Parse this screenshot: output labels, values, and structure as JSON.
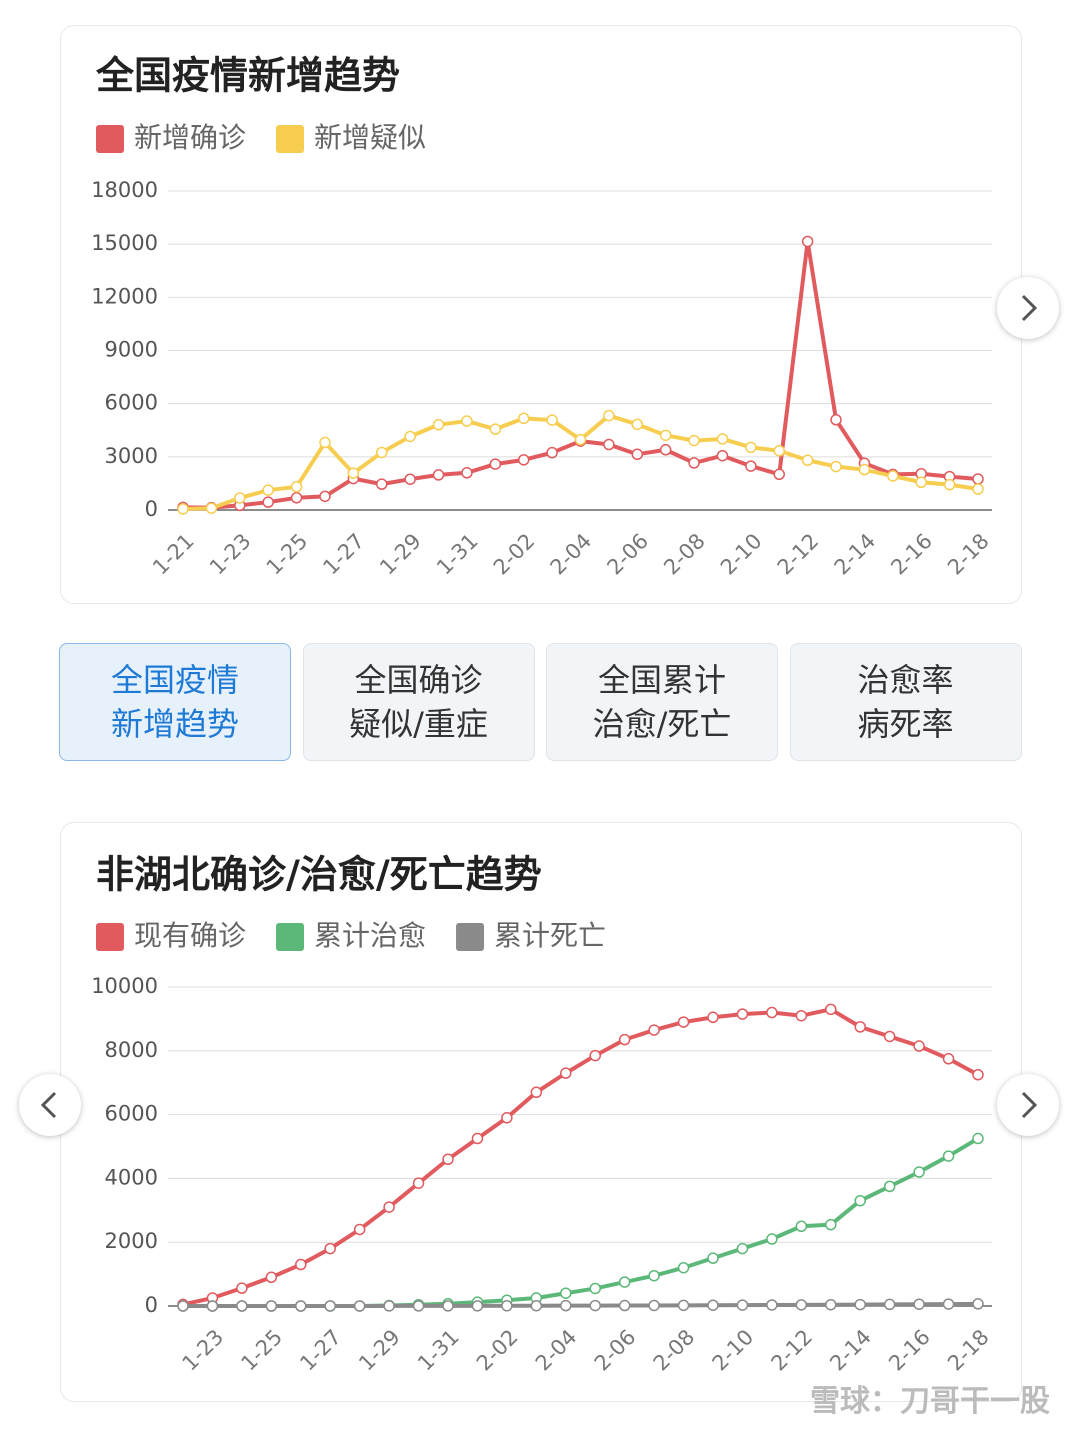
{
  "chart_data": [
    {
      "type": "line",
      "title": "全国疫情新增趋势",
      "categories": [
        "1-21",
        null,
        "1-23",
        null,
        "1-25",
        null,
        "1-27",
        null,
        "1-29",
        null,
        "1-31",
        null,
        "2-02",
        null,
        "2-04",
        null,
        "2-06",
        null,
        "2-08",
        null,
        "2-10",
        null,
        "2-12",
        null,
        "2-14",
        null,
        "2-16",
        null,
        "2-18"
      ],
      "series": [
        {
          "name": "新增确诊",
          "color": "#e05a5e",
          "values": [
            149,
            131,
            259,
            444,
            688,
            769,
            1771,
            1459,
            1737,
            1981,
            2099,
            2590,
            2829,
            3235,
            3887,
            3694,
            3143,
            3399,
            2656,
            3062,
            2478,
            2015,
            15152,
            5090,
            2641,
            2009,
            2048,
            1886,
            1749
          ]
        },
        {
          "name": "新增疑似",
          "color": "#f7cd50",
          "values": [
            60,
            100,
            680,
            1118,
            1309,
            3806,
            2077,
            3248,
            4148,
            4812,
            5019,
            4562,
            5173,
            5072,
            3971,
            5328,
            4833,
            4214,
            3916,
            4008,
            3536,
            3342,
            2807,
            2450,
            2277,
            1918,
            1563,
            1432,
            1185
          ]
        }
      ],
      "ylim": [
        0,
        18000
      ],
      "yticks": [
        0,
        3000,
        6000,
        9000,
        12000,
        15000,
        18000
      ],
      "grid": true
    },
    {
      "type": "line",
      "title": "非湖北确诊/治愈/死亡趋势",
      "categories": [
        null,
        "1-23",
        null,
        "1-25",
        null,
        "1-27",
        null,
        "1-29",
        null,
        "1-31",
        null,
        "2-02",
        null,
        "2-04",
        null,
        "2-06",
        null,
        "2-08",
        null,
        "2-10",
        null,
        "2-12",
        null,
        "2-14",
        null,
        "2-16",
        null,
        "2-18"
      ],
      "series": [
        {
          "name": "现有确诊",
          "color": "#e05a5e",
          "values": [
            50,
            250,
            560,
            900,
            1300,
            1800,
            2400,
            3100,
            3850,
            4600,
            5250,
            5900,
            6700,
            7300,
            7850,
            8350,
            8650,
            8900,
            9050,
            9150,
            9200,
            9100,
            9300,
            8750,
            8450,
            8150,
            7750,
            7250
          ]
        },
        {
          "name": "累计治愈",
          "color": "#5cb878",
          "values": [
            0,
            0,
            0,
            0,
            0,
            0,
            0,
            15,
            40,
            70,
            120,
            180,
            250,
            400,
            550,
            750,
            950,
            1200,
            1500,
            1800,
            2100,
            2500,
            2550,
            3300,
            3750,
            4200,
            4700,
            5250
          ]
        },
        {
          "name": "累计死亡",
          "color": "#8a8a8a",
          "values": [
            0,
            0,
            0,
            0,
            0,
            1,
            1,
            2,
            3,
            4,
            5,
            6,
            8,
            10,
            12,
            14,
            17,
            20,
            24,
            28,
            32,
            36,
            40,
            45,
            50,
            55,
            60,
            66
          ]
        }
      ],
      "ylim": [
        0,
        10000
      ],
      "yticks": [
        0,
        2000,
        4000,
        6000,
        8000,
        10000
      ],
      "grid": true
    }
  ],
  "tabs": [
    [
      "全国疫情",
      "新增趋势"
    ],
    [
      "全国确诊",
      "疑似/重症"
    ],
    [
      "全国累计",
      "治愈/死亡"
    ],
    [
      "治愈率",
      "病死率"
    ]
  ],
  "watermark": "雪球：刀哥干一股"
}
